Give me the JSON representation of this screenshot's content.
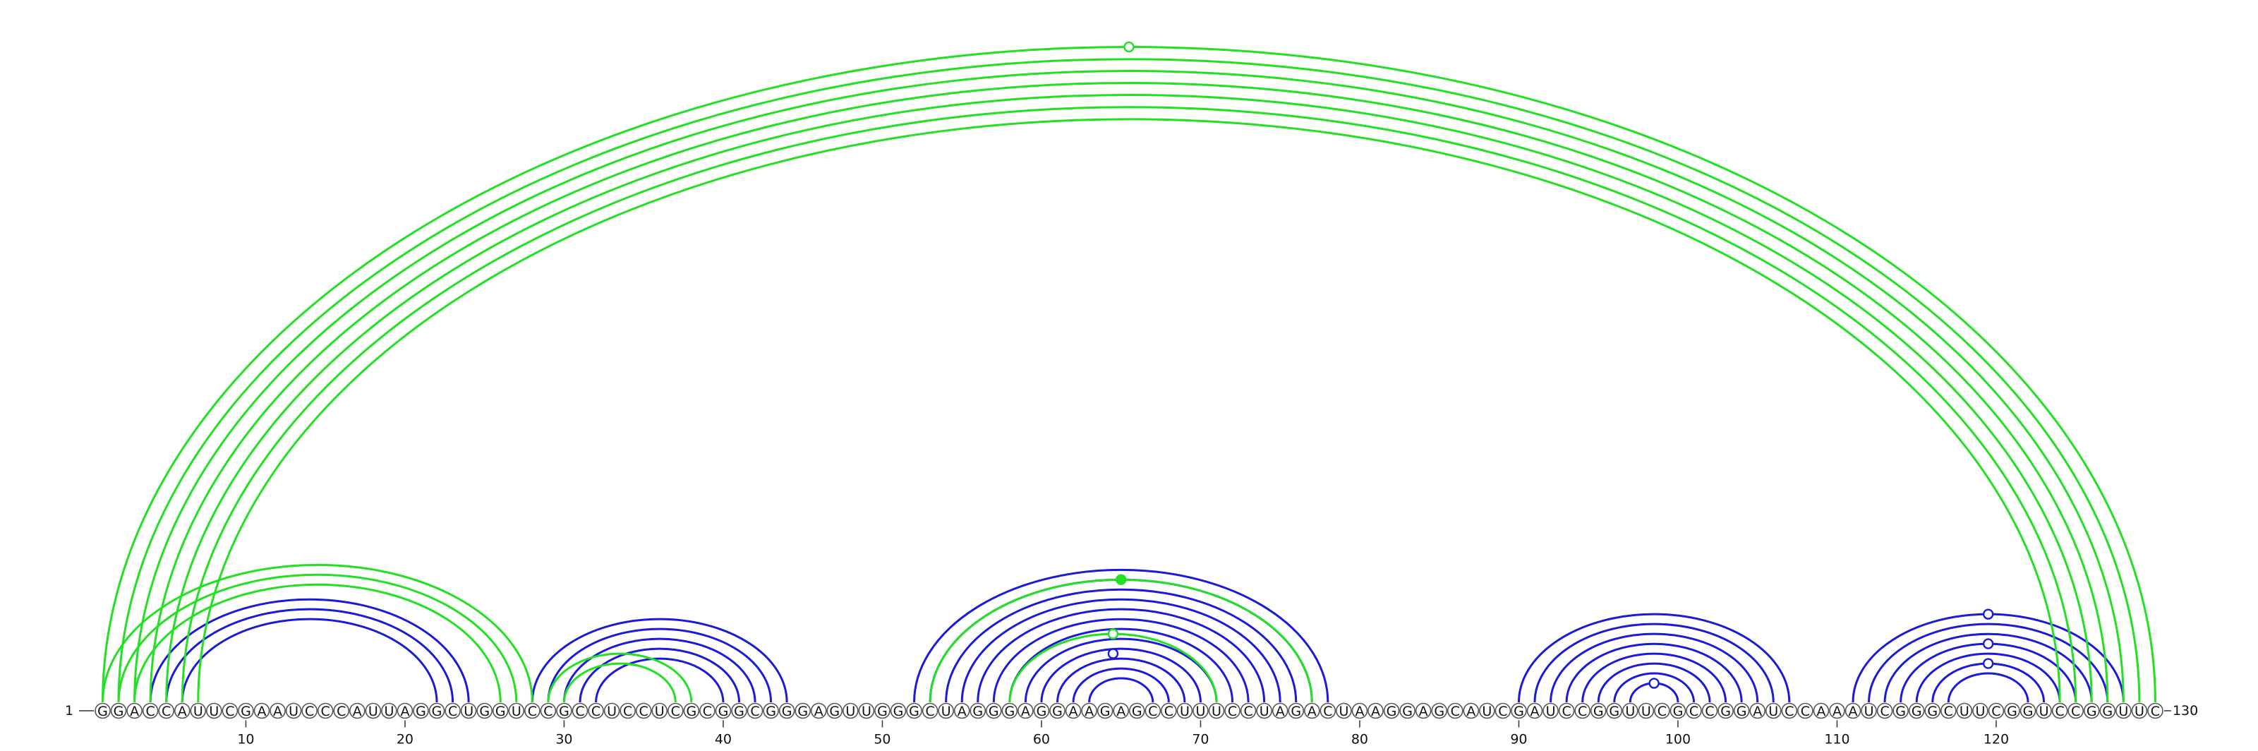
{
  "sequence": "GGACCAUUCGAAUCCCAUUAGGCUGGUCCGCCUCCUCGCGGCGGGAGUUGGGCUAGGGAGGAAGAGCCUUUCCUAGACUAAGGAGCAUCGAUCCGGUUCGCCGGAUCCAAAUCGGGCUUCGGUCCGGUUC",
  "start_label": "1",
  "end_label": "130",
  "ticks": [
    "10",
    "20",
    "30",
    "40",
    "50",
    "60",
    "70",
    "80",
    "90",
    "100",
    "110",
    "120"
  ],
  "colors": {
    "blue_pairs": "#1a1adb",
    "green_pairs": "#22e022",
    "nucleotide_outline": "#555555"
  },
  "arcs": {
    "blue": [
      [
        4,
        24
      ],
      [
        5,
        23
      ],
      [
        6,
        22
      ],
      [
        28,
        44
      ],
      [
        29,
        43
      ],
      [
        30,
        42
      ],
      [
        31,
        41
      ],
      [
        32,
        40
      ],
      [
        52,
        78
      ],
      [
        53,
        77
      ],
      [
        54,
        76
      ],
      [
        55,
        75
      ],
      [
        56,
        74
      ],
      [
        57,
        73
      ],
      [
        58,
        72
      ],
      [
        59,
        71
      ],
      [
        60,
        70
      ],
      [
        61,
        69
      ],
      [
        62,
        68
      ],
      [
        63,
        67
      ],
      [
        90,
        107
      ],
      [
        91,
        106
      ],
      [
        92,
        105
      ],
      [
        93,
        104
      ],
      [
        94,
        103
      ],
      [
        95,
        102
      ],
      [
        96,
        101
      ],
      [
        97,
        100
      ],
      [
        111,
        128
      ],
      [
        112,
        127
      ],
      [
        113,
        126
      ],
      [
        114,
        125
      ],
      [
        115,
        124
      ],
      [
        116,
        123
      ],
      [
        117,
        122
      ]
    ],
    "green": [
      [
        1,
        130
      ],
      [
        2,
        129
      ],
      [
        3,
        128
      ],
      [
        4,
        127
      ],
      [
        5,
        126
      ],
      [
        6,
        125
      ],
      [
        7,
        124
      ],
      [
        1,
        28
      ],
      [
        2,
        27
      ],
      [
        3,
        26
      ],
      [
        29,
        38
      ],
      [
        30,
        37
      ],
      [
        53,
        77
      ],
      [
        58,
        71
      ]
    ]
  },
  "pair_markers": [
    {
      "i": 1,
      "j": 130,
      "color": "green",
      "filled": false
    },
    {
      "i": 53,
      "j": 77,
      "color": "green",
      "filled": true
    },
    {
      "i": 58,
      "j": 71,
      "color": "green",
      "filled": false
    },
    {
      "i": 60,
      "j": 69,
      "color": "blue",
      "filled": false
    },
    {
      "i": 97,
      "j": 100,
      "color": "blue",
      "filled": false
    },
    {
      "i": 111,
      "j": 128,
      "color": "blue",
      "filled": false
    },
    {
      "i": 114,
      "j": 125,
      "color": "blue",
      "filled": false
    },
    {
      "i": 116,
      "j": 123,
      "color": "blue",
      "filled": false
    }
  ]
}
